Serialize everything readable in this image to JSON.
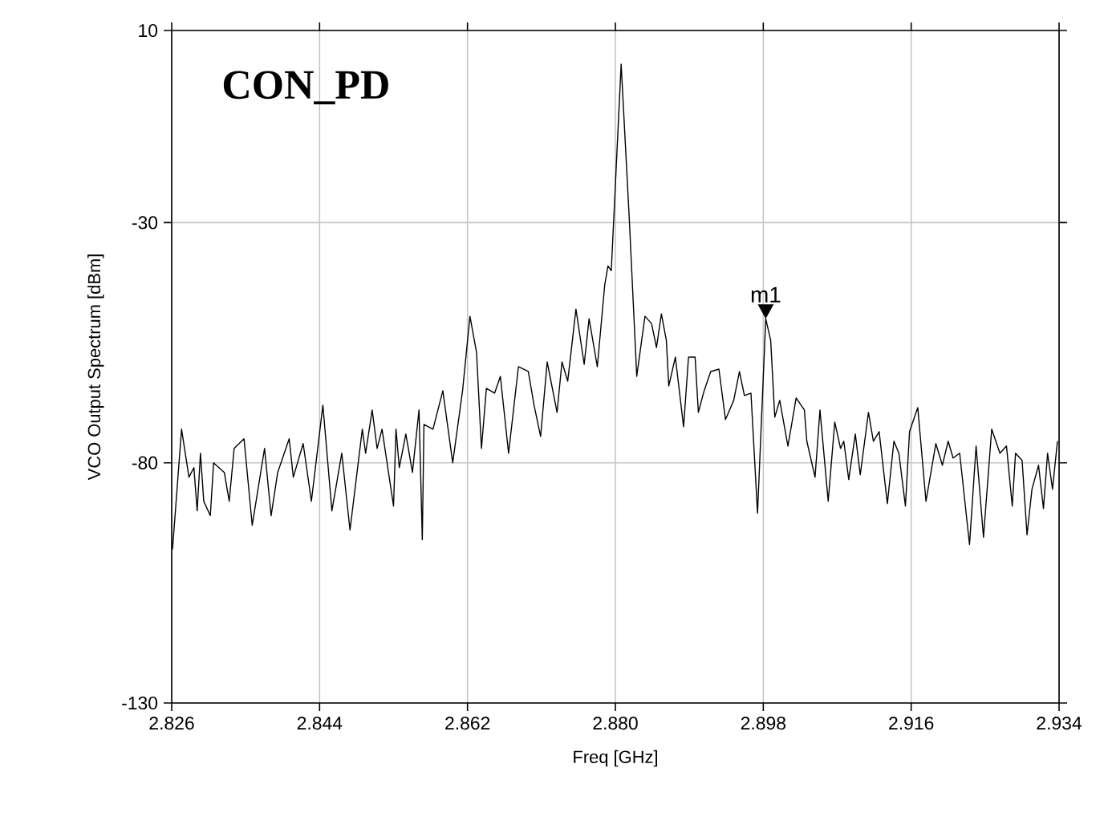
{
  "chart_data": {
    "type": "line",
    "xlabel": "Freq [GHz]",
    "ylabel": "VCO Output Spectrum [dBm]",
    "annotations": [
      "CON_PD",
      {
        "text": "m1",
        "x": 2.8983,
        "y": -50
      }
    ],
    "xlim": [
      2.826,
      2.934
    ],
    "ylim": [
      -130,
      10
    ],
    "xticks": [
      2.826,
      2.844,
      2.862,
      {
        "value": 2.88,
        "label": "2.880"
      },
      2.898,
      2.916,
      2.934
    ],
    "yticks": [
      -130,
      -80,
      -30,
      10
    ],
    "grid": true,
    "marker": "none",
    "line_style": "solid",
    "series": [
      {
        "color": "#000000",
        "x": [
          2.8261,
          2.8272,
          2.8281,
          2.8287,
          2.8291,
          2.8295,
          2.8299,
          2.8307,
          2.8311,
          2.8324,
          2.833,
          2.8336,
          2.8348,
          2.8358,
          2.8373,
          2.8381,
          2.8389,
          2.8403,
          2.8408,
          2.842,
          2.843,
          2.8444,
          2.8455,
          2.8467,
          2.8477,
          2.8492,
          2.8496,
          2.8504,
          2.851,
          2.8516,
          2.853,
          2.8533,
          2.8537,
          2.8545,
          2.8553,
          2.8561,
          2.8565,
          2.8567,
          2.8578,
          2.859,
          2.8602,
          2.8614,
          2.8623,
          2.8631,
          2.8637,
          2.8643,
          2.8653,
          2.866,
          2.867,
          2.8682,
          2.8694,
          2.8701,
          2.8709,
          2.8717,
          2.8729,
          2.8735,
          2.8742,
          2.8752,
          2.8762,
          2.8768,
          2.8778,
          2.8787,
          2.8791,
          2.8795,
          2.8807,
          2.8817,
          2.8826,
          2.8836,
          2.8844,
          2.885,
          2.8856,
          2.8862,
          2.8865,
          2.8873,
          2.8883,
          2.8889,
          2.8897,
          2.8901,
          2.8908,
          2.8916,
          2.8926,
          2.8934,
          2.8944,
          2.8951,
          2.8957,
          2.8965,
          2.8973,
          2.8983,
          2.8989,
          2.8994,
          2.9,
          2.901,
          2.902,
          2.903,
          2.9033,
          2.9043,
          2.9049,
          2.9059,
          2.9067,
          2.9074,
          2.9078,
          2.9084,
          2.9092,
          2.9098,
          2.9108,
          2.9114,
          2.9121,
          2.9131,
          2.9139,
          2.9145,
          2.9153,
          2.9158,
          2.9168,
          2.9178,
          2.919,
          2.9198,
          2.9205,
          2.9211,
          2.9219,
          2.9231,
          2.9239,
          2.9248,
          2.9258,
          2.9268,
          2.9276,
          2.9283,
          2.9287,
          2.9295,
          2.9301,
          2.9307,
          2.9315,
          2.9321,
          2.9326,
          2.9332,
          2.9338
        ],
        "values": [
          -98,
          -73,
          -83,
          -81,
          -90,
          -78,
          -88,
          -91,
          -80,
          -82,
          -88,
          -77,
          -75,
          -93,
          -77,
          -91,
          -82,
          -75,
          -83,
          -76,
          -88,
          -68,
          -90,
          -78,
          -94,
          -73,
          -78,
          -69,
          -77,
          -73,
          -89,
          -73,
          -81,
          -74,
          -82,
          -69,
          -96,
          -72,
          -73,
          -65,
          -80,
          -65,
          -49.5,
          -57,
          -77,
          -64.5,
          -65.5,
          -62,
          -78,
          -60,
          -61,
          -68,
          -74.5,
          -59,
          -69.5,
          -59,
          -63,
          -48,
          -59.5,
          -50,
          -60,
          -43,
          -39,
          -40,
          3,
          -29.5,
          -62,
          -49.5,
          -51,
          -56,
          -49,
          -54.5,
          -64,
          -58,
          -72.5,
          -58,
          -58,
          -69.5,
          -65,
          -61,
          -60.5,
          -71,
          -67,
          -61,
          -66,
          -65.5,
          -90.5,
          -50,
          -54.5,
          -70.5,
          -67,
          -76.5,
          -66.5,
          -69,
          -75.5,
          -83,
          -69,
          -88,
          -71.5,
          -77,
          -75.5,
          -83.5,
          -74,
          -82.5,
          -69.5,
          -75.5,
          -73.5,
          -88.5,
          -75.5,
          -78,
          -89,
          -73.5,
          -68.5,
          -88,
          -76,
          -80.5,
          -75.5,
          -79,
          -78,
          -97,
          -76.5,
          -95.5,
          -73,
          -78,
          -76.5,
          -89,
          -78,
          -79.5,
          -95,
          -85.5,
          -80.5,
          -89.5,
          -78,
          -85.5,
          -75.5
        ]
      }
    ]
  }
}
